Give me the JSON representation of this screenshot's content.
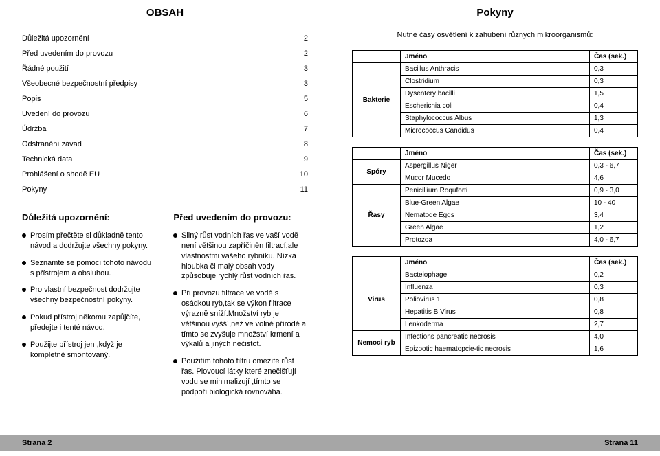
{
  "left": {
    "title": "OBSAH",
    "toc": [
      {
        "label": "Důležitá upozornění",
        "page": "2"
      },
      {
        "label": "Před uvedením do provozu",
        "page": "2"
      },
      {
        "label": "Řádné použití",
        "page": "3"
      },
      {
        "label": "Všeobecné bezpečnostní předpisy",
        "page": "3"
      },
      {
        "label": "Popis",
        "page": "5"
      },
      {
        "label": "Uvedení do provozu",
        "page": "6"
      },
      {
        "label": "Údržba",
        "page": "7"
      },
      {
        "label": "Odstranění závad",
        "page": "8"
      },
      {
        "label": "Technická data",
        "page": "9"
      },
      {
        "label": "Prohlášení o shodě EU",
        "page": "10"
      },
      {
        "label": "Pokyny",
        "page": "11"
      }
    ],
    "warn_heading": "Důležitá upozornění:",
    "warn_items": [
      "Prosím přečtěte si důkladně tento návod a dodržujte všechny pokyny.",
      "Seznamte se pomocí tohoto návodu s přístrojem a obsluhou.",
      "Pro vlastní bezpečnost dodržujte všechny bezpečnostní pokyny.",
      "Pokud přístroj někomu zapůjčíte, předejte i tenté návod.",
      "Použijte přístroj jen ,když je kompletně smontovaný."
    ],
    "pre_heading": "Před uvedením do provozu:",
    "pre_items": [
      "Silný růst vodních řas ve vaší vodě není většinou zapříčiněn filtrací,ale vlastnostmi vašeho rybníku. Nízká hloubka či malý obsah vody způsobuje rychlý růst vodních řas.",
      "Při provozu filtrace ve vodě s osádkou ryb,tak se výkon filtrace výrazně sníží.Množství ryb je většinou vyšší,než ve volné přírodě a tímto se zvyšuje množství krmení a výkalů a jiných nečistot.",
      "Použitím tohoto filtru omezíte růst řas. Plovoucí látky které znečišťují vodu se minimalizují ,tímto se podpoří biologická rovnováha."
    ],
    "footer": "Strana 2"
  },
  "right": {
    "title": "Pokyny",
    "intro": "Nutné časy osvětlení k zahubení různých mikroorganismů:",
    "col_name": "Jméno",
    "col_time": "Čas (sek.)",
    "tables": [
      {
        "category": "Bakterie",
        "rows": [
          {
            "n": "Bacillus Anthracis",
            "v": "0,3"
          },
          {
            "n": "Clostridium",
            "v": "0,3"
          },
          {
            "n": "Dysentery bacilli",
            "v": "1,5"
          },
          {
            "n": "Escherichia coli",
            "v": "0,4"
          },
          {
            "n": "Staphylococcus Albus",
            "v": "1,3"
          },
          {
            "n": "Micrococcus Candidus",
            "v": "0,4"
          }
        ]
      },
      {
        "category": "Spóry",
        "category2": "Řasy",
        "rows": [
          {
            "n": "Aspergillus Niger",
            "v": "0,3 - 6,7"
          },
          {
            "n": "Mucor Mucedo",
            "v": "4,6"
          },
          {
            "n": "Penicillium Roquforti",
            "v": "0,9 - 3,0"
          },
          {
            "n": "Blue-Green Algae",
            "v": "10 - 40"
          },
          {
            "n": "Nematode Eggs",
            "v": "3,4"
          },
          {
            "n": "Green Algae",
            "v": "1,2"
          },
          {
            "n": "Protozoa",
            "v": "4,0 - 6,7"
          }
        ]
      },
      {
        "category": "Virus",
        "category2": "Nemoci ryb",
        "rows": [
          {
            "n": "Bacteiophage",
            "v": "0,2"
          },
          {
            "n": "Influenza",
            "v": "0,3"
          },
          {
            "n": "Poliovirus 1",
            "v": "0,8"
          },
          {
            "n": "Hepatitis B Virus",
            "v": "0,8"
          },
          {
            "n": "Lenkoderma",
            "v": "2,7"
          },
          {
            "n": "Infections pancreatic necrosis",
            "v": "4,0"
          },
          {
            "n": "Epizootic haematopcie-tic necrosis",
            "v": "1,6"
          }
        ]
      }
    ],
    "footer": "Strana 11"
  }
}
